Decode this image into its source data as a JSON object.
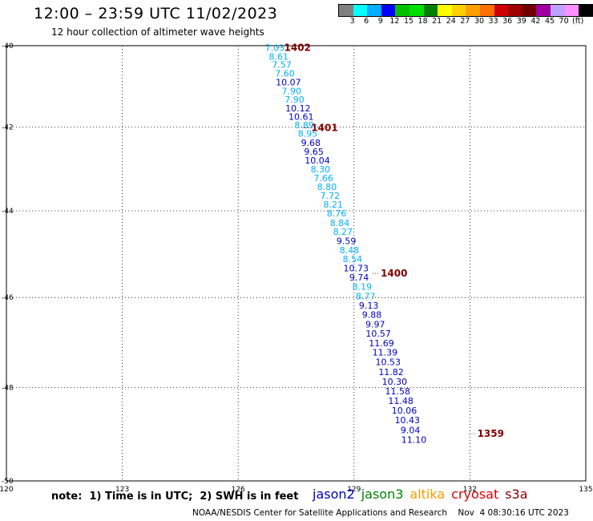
{
  "header": {
    "title": "12:00 – 23:59 UTC 11/02/2023",
    "subtitle": "12 hour collection of altimeter wave heights"
  },
  "scale": {
    "colors": [
      "#808080",
      "#00ffff",
      "#00b0ff",
      "#0000ff",
      "#00c000",
      "#00e000",
      "#008000",
      "#ffff00",
      "#ffd000",
      "#ffa000",
      "#ff7000",
      "#d00000",
      "#a00000",
      "#700000",
      "#a000a0",
      "#c0a0ff",
      "#ff90ff",
      "#000000"
    ],
    "labels": [
      "3",
      "6",
      "9",
      "12",
      "15",
      "18",
      "21",
      "24",
      "27",
      "30",
      "33",
      "36",
      "39",
      "42",
      "45",
      "70",
      "(ft)"
    ]
  },
  "map": {
    "lat_ticks": [
      "-40",
      "-42",
      "-44",
      "-46",
      "-48",
      "-50"
    ],
    "lon_ticks": [
      "120",
      "123",
      "126",
      "129",
      "132",
      "135"
    ],
    "track_times": [
      {
        "label": "1402",
        "lon": 126.9,
        "lat": -40.05
      },
      {
        "label": "1401",
        "lon": 127.6,
        "lat": -42.02
      },
      {
        "label": "1400",
        "lon": 129.4,
        "lat": -45.45
      },
      {
        "label": "1359",
        "lon": 131.9,
        "lat": -49.0
      }
    ],
    "points": [
      {
        "v": "7.03",
        "lon": 126.95,
        "lat": -40.05,
        "c": "#00b0ff"
      },
      {
        "v": "8.61",
        "lon": 127.05,
        "lat": -40.27,
        "c": "#00b0ff"
      },
      {
        "v": "7.57",
        "lon": 127.13,
        "lat": -40.47,
        "c": "#00b0ff"
      },
      {
        "v": "7.60",
        "lon": 127.21,
        "lat": -40.69,
        "c": "#00b0ff"
      },
      {
        "v": "10.07",
        "lon": 127.3,
        "lat": -40.91,
        "c": "#0000c0"
      },
      {
        "v": "7.90",
        "lon": 127.38,
        "lat": -41.12,
        "c": "#00b0ff"
      },
      {
        "v": "7.90",
        "lon": 127.46,
        "lat": -41.33,
        "c": "#00b0ff"
      },
      {
        "v": "10.12",
        "lon": 127.55,
        "lat": -41.54,
        "c": "#0000c0"
      },
      {
        "v": "10.61",
        "lon": 127.63,
        "lat": -41.75,
        "c": "#0000c0"
      },
      {
        "v": "8.89",
        "lon": 127.71,
        "lat": -41.95,
        "c": "#00b0ff"
      },
      {
        "v": "8.95",
        "lon": 127.8,
        "lat": -42.16,
        "c": "#00b0ff"
      },
      {
        "v": "9.68",
        "lon": 127.88,
        "lat": -42.38,
        "c": "#0000c0"
      },
      {
        "v": "9.65",
        "lon": 127.96,
        "lat": -42.59,
        "c": "#0000c0"
      },
      {
        "v": "10.04",
        "lon": 128.05,
        "lat": -42.8,
        "c": "#0000c0"
      },
      {
        "v": "8.30",
        "lon": 128.13,
        "lat": -43.01,
        "c": "#00b0ff"
      },
      {
        "v": "7.66",
        "lon": 128.21,
        "lat": -43.22,
        "c": "#00b0ff"
      },
      {
        "v": "8.80",
        "lon": 128.3,
        "lat": -43.43,
        "c": "#00b0ff"
      },
      {
        "v": "7.72",
        "lon": 128.38,
        "lat": -43.64,
        "c": "#00b0ff"
      },
      {
        "v": "8.21",
        "lon": 128.46,
        "lat": -43.85,
        "c": "#00b0ff"
      },
      {
        "v": "8.76",
        "lon": 128.55,
        "lat": -44.06,
        "c": "#00b0ff"
      },
      {
        "v": "8.84",
        "lon": 128.63,
        "lat": -44.28,
        "c": "#00b0ff"
      },
      {
        "v": "8.27",
        "lon": 128.71,
        "lat": -44.49,
        "c": "#00b0ff"
      },
      {
        "v": "9.59",
        "lon": 128.8,
        "lat": -44.7,
        "c": "#0000c0"
      },
      {
        "v": "8.48",
        "lon": 128.88,
        "lat": -44.91,
        "c": "#00b0ff"
      },
      {
        "v": "8.54",
        "lon": 128.96,
        "lat": -45.12,
        "c": "#00b0ff"
      },
      {
        "v": "10.73",
        "lon": 129.05,
        "lat": -45.33,
        "c": "#0000c0"
      },
      {
        "v": "9.74",
        "lon": 129.13,
        "lat": -45.54,
        "c": "#0000c0"
      },
      {
        "v": "8.19",
        "lon": 129.21,
        "lat": -45.75,
        "c": "#00b0ff"
      },
      {
        "v": "8.77",
        "lon": 129.3,
        "lat": -45.97,
        "c": "#00b0ff"
      },
      {
        "v": "9.13",
        "lon": 129.38,
        "lat": -46.18,
        "c": "#0000c0"
      },
      {
        "v": "9.88",
        "lon": 129.46,
        "lat": -46.39,
        "c": "#0000c0"
      },
      {
        "v": "9.97",
        "lon": 129.55,
        "lat": -46.6,
        "c": "#0000c0"
      },
      {
        "v": "10.57",
        "lon": 129.63,
        "lat": -46.81,
        "c": "#0000c0"
      },
      {
        "v": "11.69",
        "lon": 129.71,
        "lat": -47.02,
        "c": "#0000c0"
      },
      {
        "v": "11.39",
        "lon": 129.8,
        "lat": -47.23,
        "c": "#0000c0"
      },
      {
        "v": "10.53",
        "lon": 129.88,
        "lat": -47.44,
        "c": "#0000c0"
      },
      {
        "v": "11.82",
        "lon": 129.96,
        "lat": -47.66,
        "c": "#0000c0"
      },
      {
        "v": "10.30",
        "lon": 130.05,
        "lat": -47.87,
        "c": "#0000c0"
      },
      {
        "v": "11.58",
        "lon": 130.13,
        "lat": -48.08,
        "c": "#0000c0"
      },
      {
        "v": "11.48",
        "lon": 130.21,
        "lat": -48.29,
        "c": "#0000c0"
      },
      {
        "v": "10.06",
        "lon": 130.3,
        "lat": -48.5,
        "c": "#0000c0"
      },
      {
        "v": "10.43",
        "lon": 130.38,
        "lat": -48.71,
        "c": "#0000c0"
      },
      {
        "v": "9.04",
        "lon": 130.46,
        "lat": -48.92,
        "c": "#0000c0"
      },
      {
        "v": "11.10",
        "lon": 130.55,
        "lat": -49.13,
        "c": "#0000c0"
      }
    ]
  },
  "note": "note:  1) Time is in UTC;  2) SWH is in feet",
  "legend": [
    {
      "label": "jason2",
      "color": "#0000c0"
    },
    {
      "label": "jason3",
      "color": "#008000"
    },
    {
      "label": "altika",
      "color": "#ff9900"
    },
    {
      "label": "cryosat",
      "color": "#e00000"
    },
    {
      "label": "s3a",
      "color": "#800000"
    }
  ],
  "footer": "NOAA/NESDIS Center for Satellite Applications and Research    Nov  4 08:30:16 UTC 2023"
}
